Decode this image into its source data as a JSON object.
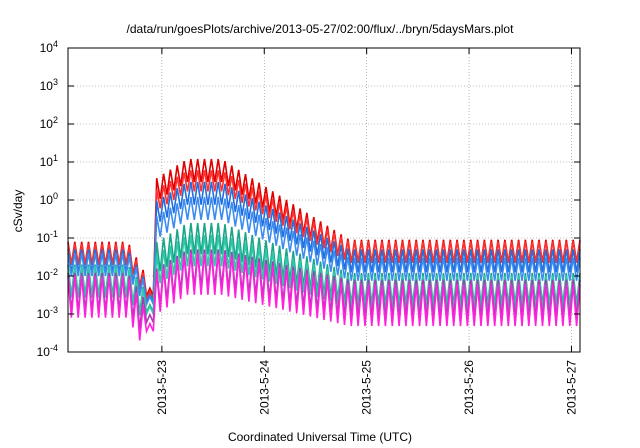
{
  "chart_data": {
    "type": "line",
    "title": "/data/run/goesPlots/archive/2013-05-27/02:00/flux/../bryn/5daysMars.plot",
    "xlabel": "Coordinated Universal Time (UTC)",
    "ylabel": "cSv/day",
    "yscale": "log",
    "ylim": [
      0.0001,
      10000
    ],
    "xlim": [
      "2013-05-22 02:00",
      "2013-05-27 02:00"
    ],
    "grid": true,
    "x_ticks": [
      "2013-5-23",
      "2013-5-24",
      "2013-5-25",
      "2013-5-26",
      "2013-5-27"
    ],
    "y_ticks": [
      {
        "base": "10",
        "exp": "-4"
      },
      {
        "base": "10",
        "exp": "-3"
      },
      {
        "base": "10",
        "exp": "-2"
      },
      {
        "base": "10",
        "exp": "-1"
      },
      {
        "base": "10",
        "exp": "0"
      },
      {
        "base": "10",
        "exp": "1"
      },
      {
        "base": "10",
        "exp": "2"
      },
      {
        "base": "10",
        "exp": "3"
      },
      {
        "base": "10",
        "exp": "4"
      }
    ],
    "sampling": "sawtooth peaks/troughs every ~1.6 h",
    "series": [
      {
        "color": "#e00000",
        "base_peak": 0.08,
        "trough_ratio": 0.25,
        "storm_peak": 12.0,
        "decay_end": 0.09,
        "dip_min": 0.003
      },
      {
        "color": "#ff3030",
        "base_peak": 0.07,
        "trough_ratio": 0.28,
        "storm_peak": 6.0,
        "decay_end": 0.08,
        "dip_min": 0.0025
      },
      {
        "color": "#1f6fe0",
        "base_peak": 0.05,
        "trough_ratio": 0.25,
        "storm_peak": 3.0,
        "decay_end": 0.05,
        "dip_min": 0.002
      },
      {
        "color": "#3c8cf0",
        "base_peak": 0.04,
        "trough_ratio": 0.25,
        "storm_peak": 1.2,
        "decay_end": 0.03,
        "dip_min": 0.0018
      },
      {
        "color": "#1aa58a",
        "base_peak": 0.02,
        "trough_ratio": 0.15,
        "storm_peak": 0.25,
        "decay_end": 0.012,
        "dip_min": 0.0011
      },
      {
        "color": "#30c8a8",
        "base_peak": 0.018,
        "trough_ratio": 0.15,
        "storm_peak": 0.12,
        "decay_end": 0.01,
        "dip_min": 0.001
      },
      {
        "color": "#a040b0",
        "base_peak": 0.012,
        "trough_ratio": 0.1,
        "storm_peak": 0.05,
        "decay_end": 0.008,
        "dip_min": 0.0006
      },
      {
        "color": "#ff22dd",
        "base_peak": 0.01,
        "trough_ratio": 0.08,
        "storm_peak": 0.04,
        "decay_end": 0.006,
        "dip_min": 0.00035
      }
    ]
  }
}
